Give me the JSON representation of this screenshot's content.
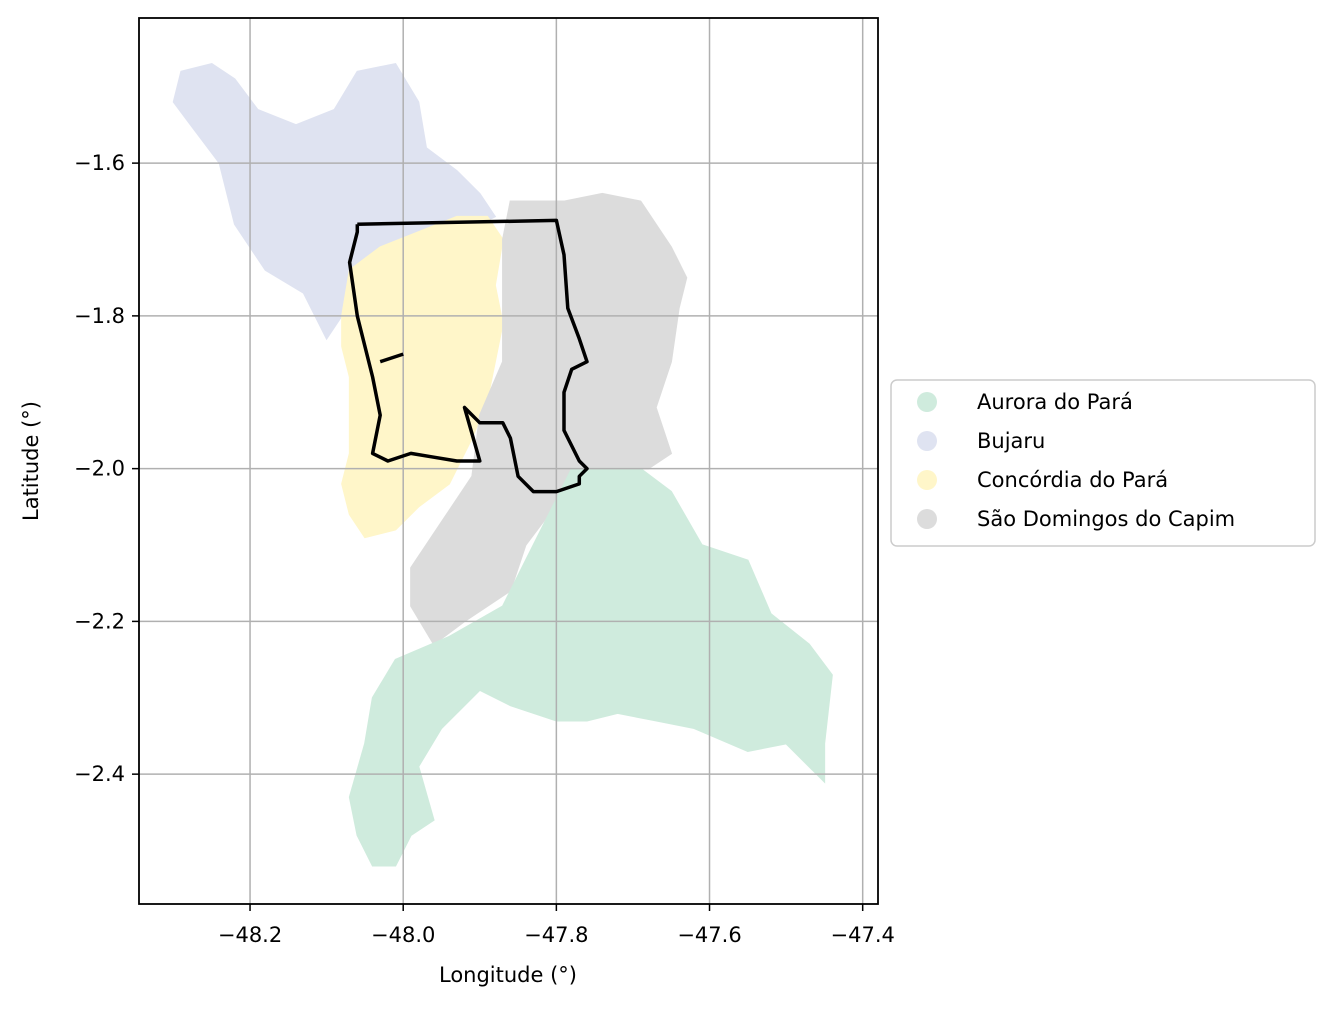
{
  "map": {
    "xlabel": "Longitude (°)",
    "ylabel": "Latitude (°)",
    "xlim": [
      -48.345,
      -47.38
    ],
    "ylim": [
      -2.57,
      -1.41
    ],
    "x_ticks": [
      -48.2,
      -48.0,
      -47.8,
      -47.6,
      -47.4
    ],
    "y_ticks": [
      -1.6,
      -1.8,
      -2.0,
      -2.2,
      -2.4
    ],
    "x_tick_labels": [
      "−48.2",
      "−48.0",
      "−47.8",
      "−47.6",
      "−47.4"
    ],
    "y_tick_labels": [
      "−1.6",
      "−1.8",
      "−2.0",
      "−2.2",
      "−2.4"
    ],
    "grid": true,
    "legend_position": "right",
    "legend": [
      {
        "label": "Aurora do Pará",
        "color": "#cfebdd"
      },
      {
        "label": "Bujaru",
        "color": "#dfe3f1"
      },
      {
        "label": "Concórdia do Pará",
        "color": "#fff6c9"
      },
      {
        "label": "São Domingos do Capim",
        "color": "#dcdcdc"
      }
    ],
    "regions": [
      {
        "name": "Bujaru",
        "color": "#dfe3f1",
        "coords": [
          [
            -48.29,
            -1.48
          ],
          [
            -48.25,
            -1.47
          ],
          [
            -48.22,
            -1.49
          ],
          [
            -48.19,
            -1.53
          ],
          [
            -48.14,
            -1.55
          ],
          [
            -48.09,
            -1.53
          ],
          [
            -48.06,
            -1.48
          ],
          [
            -48.01,
            -1.47
          ],
          [
            -47.98,
            -1.52
          ],
          [
            -47.97,
            -1.58
          ],
          [
            -47.93,
            -1.61
          ],
          [
            -47.9,
            -1.64
          ],
          [
            -47.88,
            -1.67
          ],
          [
            -47.92,
            -1.69
          ],
          [
            -47.96,
            -1.7
          ],
          [
            -48.02,
            -1.71
          ],
          [
            -48.07,
            -1.74
          ],
          [
            -48.08,
            -1.8
          ],
          [
            -48.1,
            -1.83
          ],
          [
            -48.13,
            -1.77
          ],
          [
            -48.18,
            -1.74
          ],
          [
            -48.22,
            -1.68
          ],
          [
            -48.24,
            -1.6
          ],
          [
            -48.27,
            -1.56
          ],
          [
            -48.3,
            -1.52
          ]
        ]
      },
      {
        "name": "Concórdia do Pará",
        "color": "#fff6c9",
        "coords": [
          [
            -48.07,
            -1.74
          ],
          [
            -48.03,
            -1.71
          ],
          [
            -47.98,
            -1.69
          ],
          [
            -47.93,
            -1.67
          ],
          [
            -47.89,
            -1.67
          ],
          [
            -47.87,
            -1.7
          ],
          [
            -47.88,
            -1.76
          ],
          [
            -47.87,
            -1.81
          ],
          [
            -47.88,
            -1.86
          ],
          [
            -47.89,
            -1.91
          ],
          [
            -47.91,
            -1.96
          ],
          [
            -47.94,
            -2.02
          ],
          [
            -47.98,
            -2.05
          ],
          [
            -48.01,
            -2.08
          ],
          [
            -48.05,
            -2.09
          ],
          [
            -48.07,
            -2.06
          ],
          [
            -48.08,
            -2.02
          ],
          [
            -48.07,
            -1.98
          ],
          [
            -48.07,
            -1.93
          ],
          [
            -48.07,
            -1.88
          ],
          [
            -48.08,
            -1.84
          ],
          [
            -48.08,
            -1.8
          ]
        ]
      },
      {
        "name": "São Domingos do Capim",
        "color": "#dcdcdc",
        "coords": [
          [
            -47.86,
            -1.65
          ],
          [
            -47.79,
            -1.65
          ],
          [
            -47.74,
            -1.64
          ],
          [
            -47.69,
            -1.65
          ],
          [
            -47.65,
            -1.71
          ],
          [
            -47.63,
            -1.75
          ],
          [
            -47.64,
            -1.79
          ],
          [
            -47.65,
            -1.86
          ],
          [
            -47.67,
            -1.92
          ],
          [
            -47.65,
            -1.98
          ],
          [
            -47.68,
            -2.0
          ],
          [
            -47.78,
            -2.0
          ],
          [
            -47.81,
            -2.06
          ],
          [
            -47.84,
            -2.1
          ],
          [
            -47.86,
            -2.16
          ],
          [
            -47.92,
            -2.2
          ],
          [
            -47.96,
            -2.23
          ],
          [
            -47.99,
            -2.18
          ],
          [
            -47.99,
            -2.13
          ],
          [
            -47.95,
            -2.07
          ],
          [
            -47.91,
            -2.01
          ],
          [
            -47.9,
            -1.93
          ],
          [
            -47.87,
            -1.86
          ],
          [
            -47.87,
            -1.78
          ],
          [
            -47.87,
            -1.7
          ]
        ]
      },
      {
        "name": "Aurora do Pará",
        "color": "#cfebdd",
        "coords": [
          [
            -47.78,
            -2.0
          ],
          [
            -47.69,
            -2.0
          ],
          [
            -47.65,
            -2.03
          ],
          [
            -47.61,
            -2.1
          ],
          [
            -47.55,
            -2.12
          ],
          [
            -47.52,
            -2.19
          ],
          [
            -47.47,
            -2.23
          ],
          [
            -47.44,
            -2.27
          ],
          [
            -47.45,
            -2.36
          ],
          [
            -47.45,
            -2.41
          ],
          [
            -47.5,
            -2.36
          ],
          [
            -47.55,
            -2.37
          ],
          [
            -47.62,
            -2.34
          ],
          [
            -47.67,
            -2.33
          ],
          [
            -47.72,
            -2.32
          ],
          [
            -47.76,
            -2.33
          ],
          [
            -47.8,
            -2.33
          ],
          [
            -47.86,
            -2.31
          ],
          [
            -47.9,
            -2.29
          ],
          [
            -47.95,
            -2.34
          ],
          [
            -47.98,
            -2.39
          ],
          [
            -47.96,
            -2.46
          ],
          [
            -47.99,
            -2.48
          ],
          [
            -48.01,
            -2.52
          ],
          [
            -48.04,
            -2.52
          ],
          [
            -48.06,
            -2.48
          ],
          [
            -48.07,
            -2.43
          ],
          [
            -48.05,
            -2.36
          ],
          [
            -48.04,
            -2.3
          ],
          [
            -48.01,
            -2.25
          ],
          [
            -47.94,
            -2.22
          ],
          [
            -47.87,
            -2.18
          ],
          [
            -47.83,
            -2.1
          ],
          [
            -47.8,
            -2.04
          ]
        ]
      }
    ],
    "boundary_path": [
      [
        -48.06,
        -1.68
      ],
      [
        -47.8,
        -1.675
      ],
      [
        -47.79,
        -1.72
      ],
      [
        -47.785,
        -1.79
      ],
      [
        -47.77,
        -1.83
      ],
      [
        -47.76,
        -1.86
      ],
      [
        -47.78,
        -1.87
      ],
      [
        -47.79,
        -1.9
      ],
      [
        -47.79,
        -1.95
      ],
      [
        -47.77,
        -1.99
      ],
      [
        -47.76,
        -2.0
      ],
      [
        -47.77,
        -2.01
      ],
      [
        -47.77,
        -2.02
      ],
      [
        -47.8,
        -2.03
      ],
      [
        -47.83,
        -2.03
      ],
      [
        -47.85,
        -2.01
      ],
      [
        -47.86,
        -1.96
      ],
      [
        -47.87,
        -1.94
      ],
      [
        -47.9,
        -1.94
      ],
      [
        -47.92,
        -1.92
      ],
      [
        -47.9,
        -1.99
      ],
      [
        -47.93,
        -1.99
      ],
      [
        -47.96,
        -1.985
      ],
      [
        -47.99,
        -1.98
      ],
      [
        -48.02,
        -1.99
      ],
      [
        -48.04,
        -1.98
      ],
      [
        -48.03,
        -1.93
      ],
      [
        -48.04,
        -1.88
      ],
      [
        -48.06,
        -1.8
      ],
      [
        -48.07,
        -1.73
      ],
      [
        -48.06,
        -1.69
      ],
      [
        -48.06,
        -1.68
      ]
    ],
    "boundary_spur": [
      [
        -48.03,
        -1.86
      ],
      [
        -48.0,
        -1.85
      ]
    ]
  }
}
